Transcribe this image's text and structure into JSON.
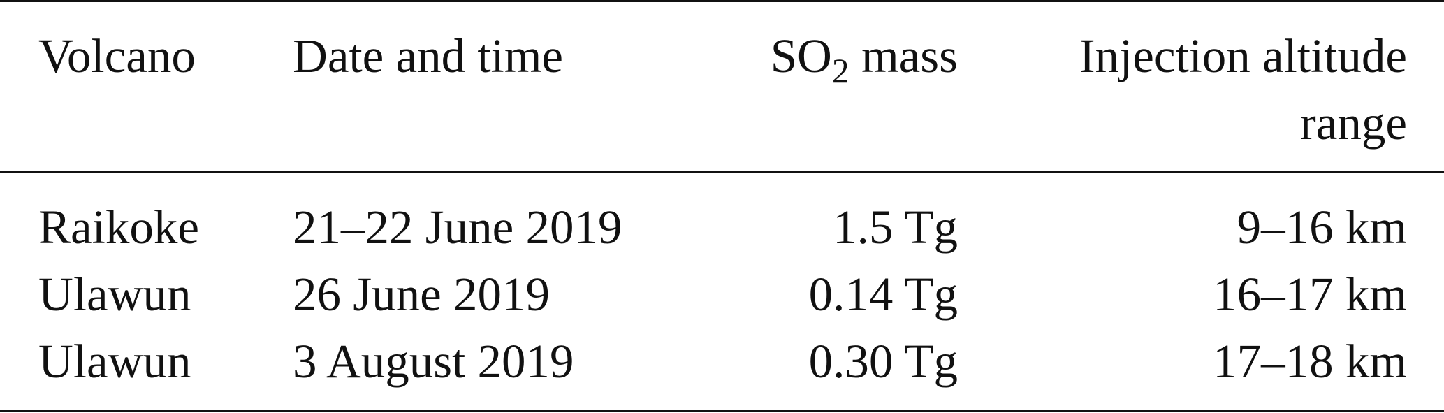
{
  "table": {
    "headers": {
      "volcano": "Volcano",
      "date": "Date and time",
      "so2_prefix": "SO",
      "so2_sub": "2",
      "so2_suffix": " mass",
      "altitude_line1": "Injection altitude",
      "altitude_line2": "range"
    },
    "rows": [
      {
        "volcano": "Raikoke",
        "date": "21–22 June 2019",
        "mass": "1.5 Tg",
        "altitude": "9–16 km"
      },
      {
        "volcano": "Ulawun",
        "date": "26 June 2019",
        "mass": "0.14 Tg",
        "altitude": "16–17 km"
      },
      {
        "volcano": "Ulawun",
        "date": "3 August 2019",
        "mass": "0.30 Tg",
        "altitude": "17–18 km"
      }
    ]
  }
}
